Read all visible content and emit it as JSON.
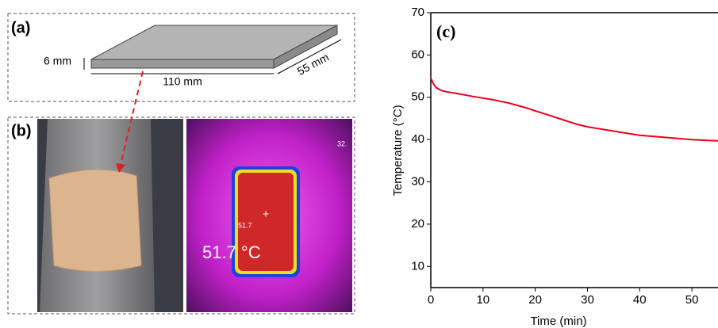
{
  "panel_a": {
    "label": "(a)",
    "thickness": "6 mm",
    "length": "110 mm",
    "width": "55 mm"
  },
  "panel_b": {
    "label": "(b)",
    "temperature": "51.7 °C",
    "spot_reading": "51.7",
    "scale_reading": "32."
  },
  "chart_data": {
    "type": "line",
    "panel_label": "(c)",
    "x_label": "Time (min)",
    "y_label": "Temperature (°C)",
    "x": [
      0,
      0.5,
      1,
      2,
      3,
      5,
      8,
      10,
      12,
      15,
      18,
      20,
      22,
      25,
      28,
      30,
      33,
      35,
      38,
      40,
      43,
      45,
      48,
      50,
      53,
      55
    ],
    "values": [
      54.5,
      53.2,
      52.3,
      51.6,
      51.3,
      50.9,
      50.2,
      49.8,
      49.4,
      48.6,
      47.6,
      46.8,
      46.0,
      44.8,
      43.6,
      43.0,
      42.4,
      42.0,
      41.4,
      41.0,
      40.7,
      40.5,
      40.2,
      40.0,
      39.8,
      39.7
    ],
    "color": "#e8001c",
    "xlim": [
      0,
      55
    ],
    "ylim": [
      5,
      70
    ],
    "xticks": [
      0,
      10,
      20,
      30,
      40,
      50
    ],
    "yticks": [
      10,
      20,
      30,
      40,
      50,
      60,
      70
    ]
  }
}
